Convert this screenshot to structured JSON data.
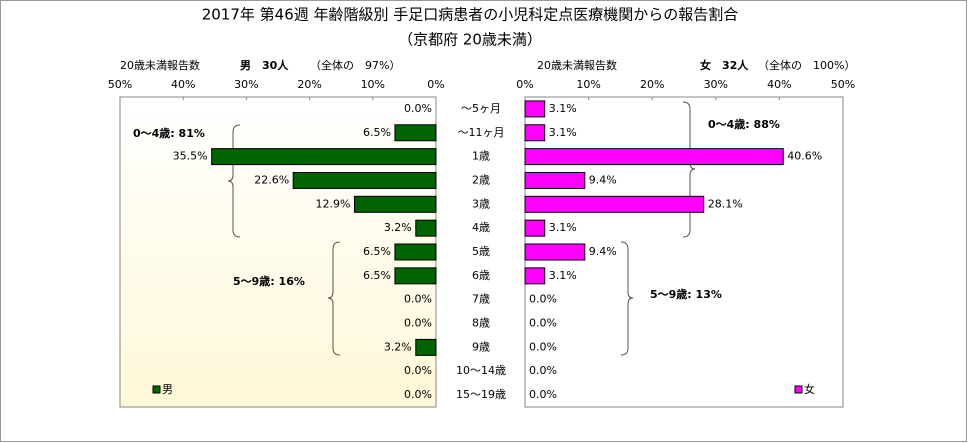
{
  "chart_data": {
    "type": "butterfly",
    "title": "2017年 第46週 年齢階級別 手足口病患者の小児科定点医療機関からの報告割合",
    "subtitle": "（京都府 20歳未満）",
    "categories": [
      "～5ヶ月",
      "～11ヶ月",
      "1歳",
      "2歳",
      "3歳",
      "4歳",
      "5歳",
      "6歳",
      "7歳",
      "8歳",
      "9歳",
      "10～14歳",
      "15～19歳"
    ],
    "series": [
      {
        "name": "男",
        "color": "#006400",
        "header_label": "20歳未満報告数",
        "count_label": "男　30人",
        "share_label": "（全体の　97%）",
        "values": [
          0.0,
          6.5,
          35.5,
          22.6,
          12.9,
          3.2,
          6.5,
          6.5,
          0.0,
          0.0,
          3.2,
          0.0,
          0.0
        ],
        "value_labels": [
          "0.0%",
          "6.5%",
          "35.5%",
          "22.6%",
          "12.9%",
          "3.2%",
          "6.5%",
          "6.5%",
          "0.0%",
          "0.0%",
          "3.2%",
          "0.0%",
          "0.0%"
        ],
        "xlim": [
          50,
          0
        ],
        "xticks": [
          {
            "value": 50,
            "label": "50%"
          },
          {
            "value": 40,
            "label": "40%"
          },
          {
            "value": 30,
            "label": "30%"
          },
          {
            "value": 20,
            "label": "20%"
          },
          {
            "value": 10,
            "label": "10%"
          },
          {
            "value": 0,
            "label": "0%"
          }
        ],
        "annotations": [
          "0～4歳: 81%",
          "5～9歳: 16%"
        ]
      },
      {
        "name": "女",
        "color": "#ff00ff",
        "header_label": "20歳未満報告数",
        "count_label": "女　32人",
        "share_label": "（全体の　100%）",
        "values": [
          3.1,
          3.1,
          40.6,
          9.4,
          28.1,
          3.1,
          9.4,
          3.1,
          0.0,
          0.0,
          0.0,
          0.0,
          0.0
        ],
        "value_labels": [
          "3.1%",
          "3.1%",
          "40.6%",
          "9.4%",
          "28.1%",
          "3.1%",
          "9.4%",
          "3.1%",
          "0.0%",
          "0.0%",
          "0.0%",
          "0.0%",
          "0.0%"
        ],
        "xlim": [
          0,
          50
        ],
        "xticks": [
          {
            "value": 0,
            "label": "0%"
          },
          {
            "value": 10,
            "label": "10%"
          },
          {
            "value": 20,
            "label": "20%"
          },
          {
            "value": 30,
            "label": "30%"
          },
          {
            "value": 40,
            "label": "40%"
          },
          {
            "value": 50,
            "label": "50%"
          }
        ],
        "annotations": [
          "0～4歳: 88%",
          "5～9歳: 13%"
        ]
      }
    ]
  }
}
